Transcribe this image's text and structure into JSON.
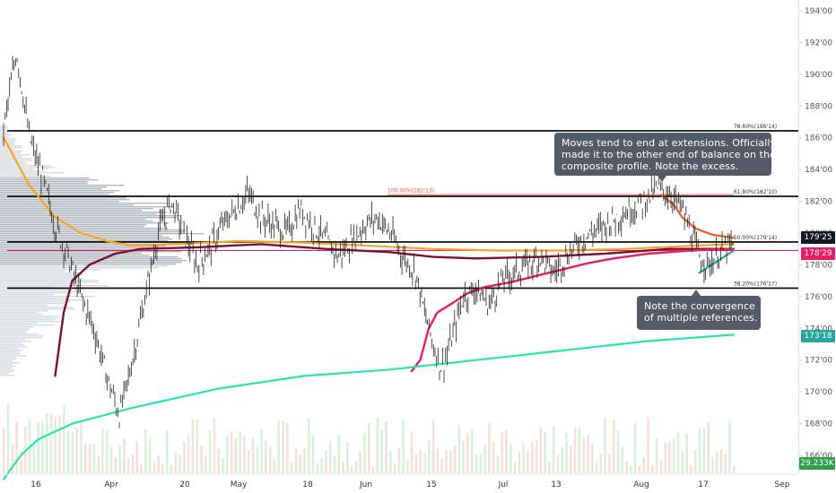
{
  "chart_data": {
    "type": "line",
    "instrument_units": "32nds",
    "y_ticks": [
      "194'00",
      "192'00",
      "190'00",
      "188'00",
      "186'00",
      "184'00",
      "182'00",
      "180'00",
      "178'00",
      "176'00",
      "174'00",
      "172'00",
      "170'00",
      "168'00",
      "166'00"
    ],
    "y_values": [
      194,
      192,
      190,
      188,
      186,
      184,
      182,
      180,
      178,
      176,
      174,
      172,
      170,
      168,
      166
    ],
    "ylim": [
      165,
      195.3
    ],
    "x_ticks": [
      {
        "label": "16",
        "date": "2020-03-16"
      },
      {
        "label": "Apr",
        "date": "2020-04-01"
      },
      {
        "label": "20",
        "date": "2020-04-20"
      },
      {
        "label": "May",
        "date": "2020-05-01"
      },
      {
        "label": "18",
        "date": "2020-05-18"
      },
      {
        "label": "Jun",
        "date": "2020-06-01"
      },
      {
        "label": "15",
        "date": "2020-06-15"
      },
      {
        "label": "Jul",
        "date": "2020-07-01"
      },
      {
        "label": "13",
        "date": "2020-07-13"
      },
      {
        "label": "Aug",
        "date": "2020-08-03"
      },
      {
        "label": "17",
        "date": "2020-08-17"
      },
      {
        "label": "Sep",
        "date": "2020-09-01"
      }
    ],
    "horizontal_levels": [
      {
        "value": 186.44,
        "label": "78.60%(186'14)",
        "color": "#000000"
      },
      {
        "value": 182.31,
        "label": "61.80%(182'10)",
        "color": "#000000"
      },
      {
        "value": 182.41,
        "label": "100.00%(182'13)",
        "color": "#ef5350"
      },
      {
        "value": 179.44,
        "label": "50.00%(179'14)",
        "color": "#000000"
      },
      {
        "value": 178.9,
        "label": "",
        "color": "#e91e63"
      },
      {
        "value": 176.53,
        "label": "38.20%(176'17)",
        "color": "#000000"
      }
    ],
    "series": [
      {
        "key": "price",
        "color": "#000000",
        "points": [
          [
            0,
            186.5
          ],
          [
            3,
            191.5
          ],
          [
            6,
            186
          ],
          [
            9,
            183.5
          ],
          [
            12,
            180.5
          ],
          [
            15,
            178.5
          ],
          [
            18,
            176
          ],
          [
            21,
            174
          ],
          [
            24,
            171
          ],
          [
            27,
            168.5
          ],
          [
            30,
            172
          ],
          [
            33,
            176
          ],
          [
            36,
            180
          ],
          [
            39,
            182
          ],
          [
            42,
            180
          ],
          [
            45,
            178
          ],
          [
            48,
            179
          ],
          [
            51,
            180.5
          ],
          [
            54,
            181.5
          ],
          [
            57,
            182.5
          ],
          [
            60,
            181
          ],
          [
            63,
            180.5
          ],
          [
            66,
            180
          ],
          [
            69,
            181.5
          ],
          [
            72,
            180.5
          ],
          [
            75,
            179.5
          ],
          [
            78,
            178.5
          ],
          [
            81,
            179.5
          ],
          [
            84,
            180.5
          ],
          [
            87,
            181
          ],
          [
            90,
            180
          ],
          [
            93,
            178.5
          ],
          [
            96,
            177.5
          ],
          [
            98,
            175
          ],
          [
            100,
            173
          ],
          [
            102,
            171.5
          ],
          [
            104,
            173
          ],
          [
            107,
            176
          ],
          [
            110,
            176.5
          ],
          [
            113,
            175.5
          ],
          [
            116,
            177
          ],
          [
            119,
            177.5
          ],
          [
            122,
            178
          ],
          [
            125,
            178.5
          ],
          [
            128,
            177.5
          ],
          [
            131,
            178.5
          ],
          [
            134,
            179.5
          ],
          [
            137,
            180
          ],
          [
            140,
            180.5
          ],
          [
            143,
            181
          ],
          [
            146,
            181.5
          ],
          [
            149,
            182
          ],
          [
            152,
            182.8
          ],
          [
            155,
            182.5
          ],
          [
            158,
            181.5
          ],
          [
            160,
            180
          ],
          [
            162,
            178.5
          ],
          [
            164,
            178
          ],
          [
            166,
            178.5
          ],
          [
            168,
            179
          ],
          [
            170,
            179.3
          ]
        ]
      },
      {
        "key": "ema-orange",
        "color": "#f5a623",
        "points": [
          [
            0,
            186
          ],
          [
            6,
            183
          ],
          [
            12,
            181
          ],
          [
            18,
            180
          ],
          [
            24,
            179.5
          ],
          [
            30,
            179.2
          ],
          [
            40,
            179.3
          ],
          [
            55,
            179.5
          ],
          [
            70,
            179.4
          ],
          [
            85,
            179.2
          ],
          [
            100,
            179
          ],
          [
            115,
            178.9
          ],
          [
            130,
            178.9
          ],
          [
            145,
            179
          ],
          [
            160,
            179.2
          ],
          [
            170,
            179.3
          ]
        ]
      },
      {
        "key": "ema-darkred",
        "color": "#7b1030",
        "points": [
          [
            12,
            171
          ],
          [
            14,
            175
          ],
          [
            16,
            177
          ],
          [
            20,
            178
          ],
          [
            26,
            178.7
          ],
          [
            32,
            179
          ],
          [
            45,
            179.1
          ],
          [
            60,
            179.3
          ],
          [
            75,
            179
          ],
          [
            90,
            178.8
          ],
          [
            100,
            178.5
          ],
          [
            110,
            178.4
          ],
          [
            125,
            178.5
          ],
          [
            140,
            178.7
          ],
          [
            155,
            179
          ],
          [
            170,
            179
          ]
        ]
      },
      {
        "key": "ema-red",
        "color": "#e91e63",
        "points": [
          [
            95,
            171.3
          ],
          [
            97,
            172
          ],
          [
            99,
            174
          ],
          [
            101,
            175
          ],
          [
            104,
            175.5
          ],
          [
            108,
            176.2
          ],
          [
            112,
            176.6
          ],
          [
            118,
            176.9
          ],
          [
            124,
            177.3
          ],
          [
            130,
            177.7
          ],
          [
            136,
            178.1
          ],
          [
            142,
            178.4
          ],
          [
            150,
            178.7
          ],
          [
            160,
            178.9
          ],
          [
            170,
            179
          ]
        ]
      },
      {
        "key": "ema-orange-red",
        "color": "#ef5a28",
        "points": [
          [
            153,
            182.4
          ],
          [
            156,
            181.8
          ],
          [
            158,
            181
          ],
          [
            161,
            180.3
          ],
          [
            165,
            179.9
          ],
          [
            170,
            179.7
          ]
        ]
      },
      {
        "key": "sma-green",
        "color": "#26e8a1",
        "points": [
          [
            0,
            164.5
          ],
          [
            4,
            166
          ],
          [
            8,
            167
          ],
          [
            16,
            168
          ],
          [
            30,
            169
          ],
          [
            50,
            170.2
          ],
          [
            70,
            171
          ],
          [
            90,
            171.4
          ],
          [
            110,
            172
          ],
          [
            130,
            172.6
          ],
          [
            150,
            173.2
          ],
          [
            170,
            173.6
          ]
        ]
      },
      {
        "key": "sma-green-short",
        "color": "#26a69a",
        "points": [
          [
            162,
            177.5
          ],
          [
            166,
            178.2
          ],
          [
            170,
            178.9
          ]
        ]
      }
    ],
    "price_labels": [
      {
        "text": "179'25",
        "color": "#131722"
      },
      {
        "text": "178'29",
        "color": "#e91e63"
      },
      {
        "text": "173'18",
        "color": "#26a69a"
      },
      {
        "text": "29.233K",
        "color": "#2e9e4f"
      }
    ],
    "grid": false
  },
  "annotations": {
    "top_callout": [
      "Moves tend to end at extensions. Officially",
      "made it to the other end of balance on the",
      "composite profile. Note the excess."
    ],
    "bottom_callout": [
      "Note the convergence",
      "of multiple references."
    ]
  }
}
